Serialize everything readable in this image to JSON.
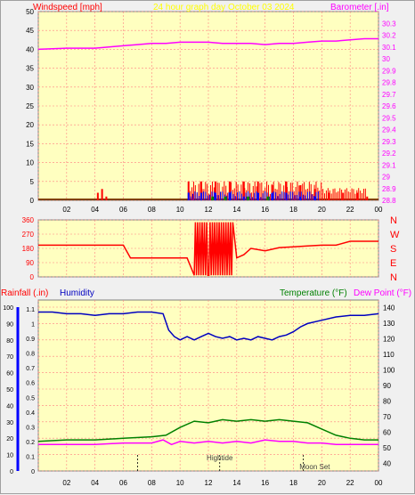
{
  "chart_data": [
    {
      "type": "line",
      "title": "24 hour graph day   October 03 2024",
      "ylabel_left": "Windspeed [mph]",
      "ylabel_right": "Barometer [.in]",
      "x_ticks": [
        "02",
        "04",
        "06",
        "08",
        "10",
        "12",
        "14",
        "16",
        "18",
        "20",
        "22",
        "00"
      ],
      "x_hours": [
        2,
        4,
        6,
        8,
        10,
        12,
        14,
        16,
        18,
        20,
        22,
        24
      ],
      "xlim": [
        0,
        24
      ],
      "ylim_left": [
        0,
        50
      ],
      "yticks_left": [
        0,
        5,
        10,
        15,
        20,
        25,
        30,
        35,
        40,
        45,
        50
      ],
      "ylim_right": [
        28.8,
        30.4
      ],
      "yticks_right": [
        "28.8",
        "28.9",
        "29",
        "29.1",
        "29.2",
        "29.3",
        "29.4",
        "29.5",
        "29.6",
        "29.7",
        "29.8",
        "29.9",
        "30",
        "30.1",
        "30.2",
        "30.3"
      ],
      "colors": {
        "wind_gust": "#ff0000",
        "wind_avg": "#0000ff",
        "wind_dir": "#008000",
        "barometer": "#ff00ff",
        "baseline": "#804000",
        "title": "#ffff00",
        "left_label": "#ff0000",
        "right_label": "#ff00ff"
      },
      "series": [
        {
          "key": "barometer",
          "axis": "right",
          "x": [
            0,
            2,
            4,
            5,
            6,
            7,
            8,
            9,
            10,
            11,
            12,
            13,
            14,
            15,
            16,
            17,
            18,
            19,
            20,
            21,
            22,
            23,
            24
          ],
          "values": [
            30.08,
            30.09,
            30.09,
            30.1,
            30.11,
            30.12,
            30.13,
            30.13,
            30.14,
            30.14,
            30.14,
            30.13,
            30.13,
            30.13,
            30.12,
            30.13,
            30.13,
            30.14,
            30.15,
            30.15,
            30.16,
            30.17,
            30.17
          ]
        },
        {
          "key": "wind_gust",
          "axis": "left",
          "x": [
            4.2,
            4.5,
            4.8,
            10.6,
            11.5,
            12.5,
            13.5,
            14.5,
            15.5,
            16.5,
            17.5,
            18.5,
            19.5,
            20.5,
            21.5,
            22.5,
            23.2
          ],
          "values": [
            2,
            3,
            1,
            5,
            5,
            5,
            5,
            5,
            5,
            4,
            5,
            4,
            3,
            2,
            2,
            2,
            1
          ]
        },
        {
          "key": "wind_avg",
          "axis": "left",
          "x": [
            10.6,
            11.5,
            12.5,
            13.5,
            14.5,
            15.5,
            16.5,
            17.5,
            18.5,
            19.5
          ],
          "values": [
            2,
            2,
            2,
            2,
            1,
            2,
            2,
            2,
            1,
            1
          ]
        },
        {
          "key": "wind_dir_marks",
          "axis": "left",
          "x": [
            12.3,
            13.2,
            14.8,
            16.2
          ],
          "values": [
            1,
            1,
            1,
            1
          ]
        }
      ]
    },
    {
      "type": "line",
      "title": "",
      "ylabel_right_letters": [
        "N",
        "W",
        "S",
        "E",
        "N"
      ],
      "xlim": [
        0,
        24
      ],
      "ylim": [
        0,
        360
      ],
      "yticks": [
        "0",
        "90",
        "180",
        "270",
        "360"
      ],
      "colors": {
        "dir": "#ff0000",
        "compass": "#ff0000"
      },
      "series": [
        {
          "key": "wind_direction",
          "x": [
            0,
            6,
            6.5,
            10.5,
            11,
            11.5,
            12,
            12.5,
            13,
            13.5,
            14,
            14.5,
            15,
            16,
            17,
            18,
            19,
            20,
            21,
            22,
            24
          ],
          "values": [
            200,
            200,
            120,
            120,
            250,
            20,
            330,
            30,
            330,
            20,
            120,
            140,
            180,
            165,
            185,
            190,
            195,
            200,
            200,
            225,
            225
          ]
        }
      ]
    },
    {
      "type": "line",
      "title": "",
      "labels": {
        "rainfall": "Rainfall (.in)",
        "humidity": "Humidity",
        "temperature": "Temperature (°F)",
        "dewpoint": "Dew Point (°F)"
      },
      "xlim": [
        0,
        24
      ],
      "x_ticks": [
        "02",
        "04",
        "06",
        "08",
        "10",
        "12",
        "14",
        "16",
        "18",
        "20",
        "22",
        "00"
      ],
      "x_hours": [
        2,
        4,
        6,
        8,
        10,
        12,
        14,
        16,
        18,
        20,
        22,
        24
      ],
      "yticks_humidity": [
        "0",
        "10",
        "20",
        "30",
        "40",
        "50",
        "60",
        "70",
        "80",
        "90",
        "100"
      ],
      "yticks_rain": [
        "0",
        "0.1",
        "0.2",
        "0.3",
        "0.4",
        "0.5",
        "0.6",
        "0.7",
        "0.8",
        "0.9",
        "1",
        "1.1"
      ],
      "yticks_temp": [
        "40",
        "50",
        "60",
        "70",
        "80",
        "90",
        "100",
        "110",
        "120",
        "130",
        "140"
      ],
      "ylim_humidity": [
        0,
        100
      ],
      "ylim_temp": [
        35,
        145
      ],
      "annotations": [
        {
          "text": "Hightide",
          "x": 12.8
        },
        {
          "text": "Moon Set",
          "x": 19.5
        }
      ],
      "tide_marks_x": [
        7.0,
        12.8,
        18.7
      ],
      "colors": {
        "humidity": "#0000c0",
        "temperature": "#008000",
        "dewpoint": "#ff00ff",
        "rain_label": "#ff0000",
        "humidity_label": "#0000c0",
        "temp_label": "#008000",
        "dew_label": "#ff00ff",
        "rain_axis": "#0000ff"
      },
      "series": [
        {
          "key": "humidity",
          "axis": "humidity",
          "x": [
            0,
            1,
            2,
            3,
            4,
            5,
            6,
            7,
            8,
            8.8,
            9.2,
            9.6,
            10,
            10.5,
            11,
            11.5,
            12,
            12.5,
            13,
            13.5,
            14,
            14.5,
            15,
            15.5,
            16,
            16.5,
            17,
            17.5,
            18,
            18.5,
            19,
            20,
            21,
            22,
            23,
            24
          ],
          "values": [
            97,
            97,
            96,
            96,
            95,
            96,
            96,
            97,
            97,
            96,
            86,
            82,
            80,
            82,
            80,
            82,
            84,
            82,
            81,
            82,
            80,
            81,
            80,
            82,
            81,
            80,
            82,
            83,
            85,
            88,
            90,
            92,
            94,
            95,
            95,
            96
          ]
        },
        {
          "key": "temperature",
          "axis": "temp",
          "x": [
            0,
            2,
            4,
            6,
            8,
            9,
            10,
            11,
            12,
            13,
            14,
            15,
            16,
            17,
            18,
            19,
            20,
            21,
            22,
            23,
            24
          ],
          "values": [
            54,
            55,
            55,
            56,
            57,
            58,
            63,
            67,
            66,
            68,
            67,
            68,
            67,
            68,
            67,
            66,
            62,
            58,
            56,
            55,
            55
          ]
        },
        {
          "key": "dewpoint",
          "axis": "temp",
          "x": [
            0,
            2,
            4,
            6,
            8,
            8.8,
            9.4,
            10,
            11,
            12,
            13,
            14,
            15,
            16,
            17,
            18,
            19,
            20,
            21,
            22,
            23,
            24
          ],
          "values": [
            52,
            52,
            52,
            53,
            53,
            55,
            52,
            54,
            53,
            54,
            53,
            54,
            53,
            55,
            54,
            54,
            53,
            53,
            52,
            52,
            52,
            52
          ]
        }
      ]
    }
  ]
}
